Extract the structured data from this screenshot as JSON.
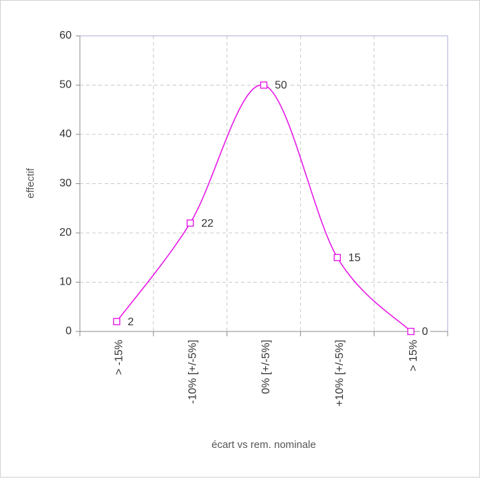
{
  "chart_data": {
    "type": "line",
    "x_label": "écart vs rem. nominale",
    "y_label": "effectif",
    "categories": [
      "> -15%",
      "-10% [+/-5%]",
      "0% [+/-5%]",
      "+10% [+/-5%]",
      "> 15%"
    ],
    "values": [
      2,
      22,
      50,
      15,
      0
    ],
    "color": "#e619e6",
    "smooth": true,
    "ylim": [
      0,
      60
    ],
    "yticks": [
      0,
      10,
      20,
      30,
      40,
      50,
      60
    ],
    "grid": true
  }
}
